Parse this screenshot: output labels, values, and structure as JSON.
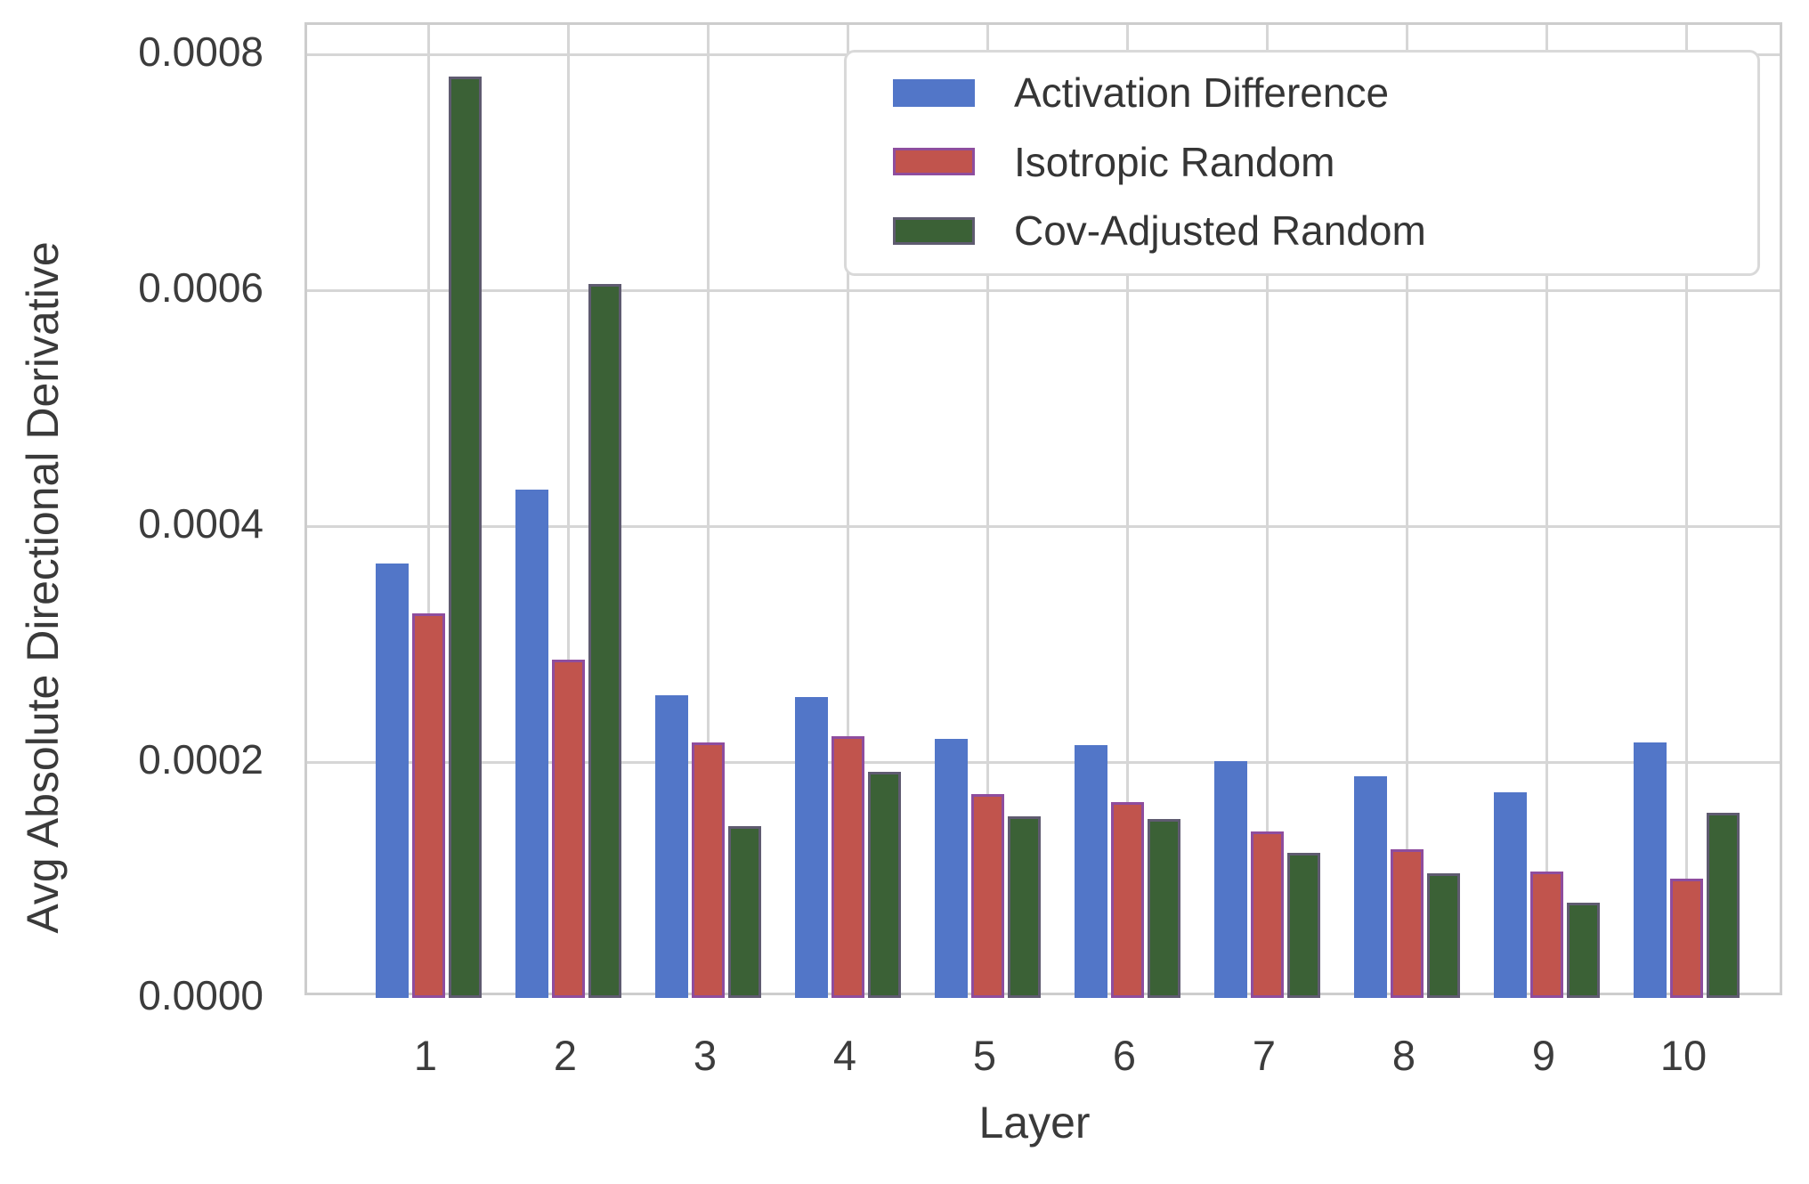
{
  "figure": {
    "background": "#ffffff"
  },
  "chart_data": {
    "type": "bar",
    "title": "",
    "xlabel": "Layer",
    "ylabel": "Avg Absolute Directional Derivative",
    "categories": [
      "1",
      "2",
      "3",
      "4",
      "5",
      "6",
      "7",
      "8",
      "9",
      "10"
    ],
    "series": [
      {
        "name": "Activation Difference",
        "color": "#5276c8",
        "edge_color": null,
        "values": [
          0.000368,
          0.000431,
          0.000257,
          0.000255,
          0.00022,
          0.000214,
          0.000201,
          0.000188,
          0.000174,
          0.000217
        ]
      },
      {
        "name": "Isotropic Random",
        "color": "#c1544d",
        "edge_color": "#8e4d9e",
        "values": [
          0.000326,
          0.000287,
          0.000217,
          0.000222,
          0.000173,
          0.000166,
          0.000141,
          0.000126,
          0.000107,
          0.000101
        ]
      },
      {
        "name": "Cov-Adjusted Random",
        "color": "#3b6136",
        "edge_color": "rgba(126,87,160,0.55)",
        "values": [
          0.000781,
          0.000605,
          0.000146,
          0.000192,
          0.000154,
          0.000152,
          0.000123,
          0.000106,
          8.1e-05,
          0.000157
        ]
      }
    ],
    "ylim": [
      0,
      0.000825
    ],
    "yticks": [
      {
        "value": 0.0,
        "label": "0.0000"
      },
      {
        "value": 0.0002,
        "label": "0.0002"
      },
      {
        "value": 0.0004,
        "label": "0.0004"
      },
      {
        "value": 0.0006,
        "label": "0.0006"
      },
      {
        "value": 0.0008,
        "label": "0.0008"
      }
    ],
    "grid": true,
    "legend_position": "upper right",
    "colors": {
      "grid": "#d6d6d6",
      "spine": "#cdcdcd",
      "tick_text": "#3c3c3c",
      "axis_title_text": "#3a3a3a",
      "legend_border": "#d9d9d9"
    }
  }
}
